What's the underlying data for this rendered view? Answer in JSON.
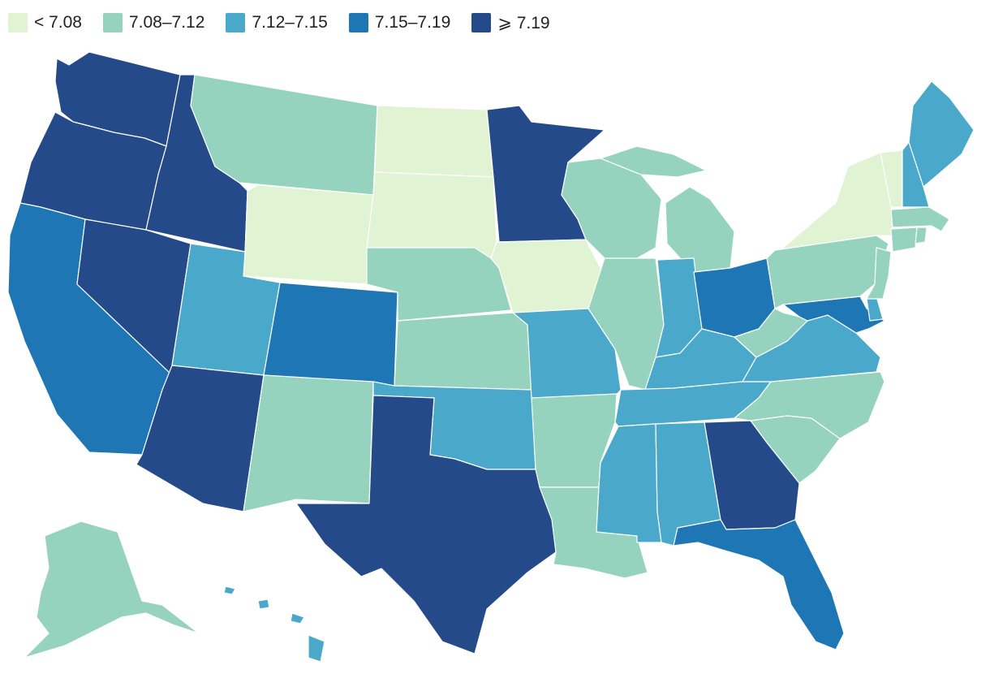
{
  "legend": {
    "items": [
      {
        "label": "< 7.08",
        "color": "#e0f3d2"
      },
      {
        "label": "7.08–7.12",
        "color": "#96d3be"
      },
      {
        "label": "7.12–7.15",
        "color": "#4aa8cb"
      },
      {
        "label": "7.15–7.19",
        "color": "#1e76b4"
      },
      {
        "label": "⩾ 7.19",
        "color": "#244a89"
      }
    ]
  },
  "map": {
    "region": "United States",
    "state_classes": {
      "WA": 4,
      "OR": 4,
      "ID": 4,
      "NV": 4,
      "AZ": 4,
      "TX": 4,
      "MN": 4,
      "GA": 4,
      "CA": 3,
      "CO": 3,
      "OH": 3,
      "MD": 3,
      "FL": 3,
      "UT": 2,
      "OK": 2,
      "MO": 2,
      "IN": 2,
      "KY": 2,
      "VA": 2,
      "TN": 2,
      "MS": 2,
      "AL": 2,
      "ME": 2,
      "NH": 2,
      "DE": 2,
      "HI": 2,
      "MT": 1,
      "NM": 1,
      "NE": 1,
      "KS": 1,
      "AR": 1,
      "LA": 1,
      "WI": 1,
      "MI": 1,
      "IL": 1,
      "WV": 1,
      "NC": 1,
      "SC": 1,
      "PA": 1,
      "NJ": 1,
      "CT": 1,
      "MA": 1,
      "RI": 1,
      "AK": 1,
      "WY": 0,
      "ND": 0,
      "SD": 0,
      "IA": 0,
      "NY": 0,
      "VT": 0
    }
  }
}
